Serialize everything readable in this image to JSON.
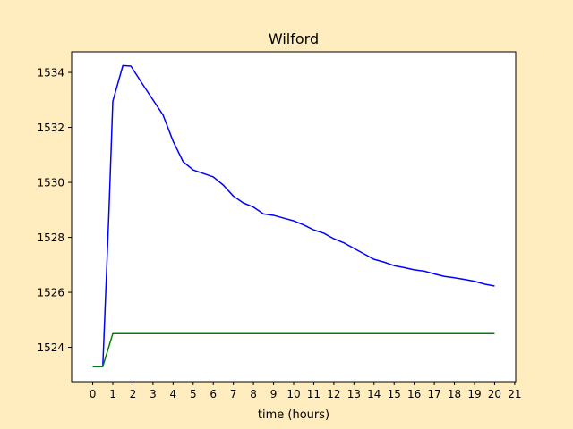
{
  "chart_data": {
    "type": "line",
    "title": "Wilford",
    "xlabel": "time (hours)",
    "ylabel": "",
    "xlim": [
      -1.05,
      21.05
    ],
    "ylim": [
      1522.75,
      1534.75
    ],
    "x_ticks": [
      0,
      1,
      2,
      3,
      4,
      5,
      6,
      7,
      8,
      9,
      10,
      11,
      12,
      13,
      14,
      15,
      16,
      17,
      18,
      19,
      20,
      21
    ],
    "y_ticks": [
      1524,
      1526,
      1528,
      1530,
      1532,
      1534
    ],
    "grid": false,
    "legend": "none",
    "series": [
      {
        "color": "#0000ff",
        "x": [
          0,
          0.5,
          0.8,
          1,
          1.5,
          1.9,
          2.5,
          3.5,
          4,
          4.5,
          5,
          6,
          6.5,
          7,
          7.5,
          8,
          8.5,
          9,
          9.5,
          10,
          10.5,
          11,
          11.5,
          12,
          12.5,
          13,
          13.5,
          14,
          14.5,
          15,
          15.5,
          16,
          16.5,
          17,
          17.5,
          18,
          18.5,
          19,
          19.5,
          20
        ],
        "y": [
          1523.3,
          1523.3,
          1528.8,
          1532.95,
          1534.25,
          1534.23,
          1533.55,
          1532.45,
          1531.5,
          1530.75,
          1530.45,
          1530.2,
          1529.9,
          1529.5,
          1529.25,
          1529.1,
          1528.85,
          1528.8,
          1528.7,
          1528.6,
          1528.45,
          1528.27,
          1528.15,
          1527.95,
          1527.8,
          1527.6,
          1527.4,
          1527.2,
          1527.1,
          1526.97,
          1526.9,
          1526.82,
          1526.77,
          1526.67,
          1526.58,
          1526.53,
          1526.47,
          1526.4,
          1526.3,
          1526.23
        ]
      },
      {
        "color": "#008000",
        "x": [
          0,
          0.5,
          1,
          20
        ],
        "y": [
          1523.3,
          1523.3,
          1524.5,
          1524.5
        ]
      }
    ]
  }
}
